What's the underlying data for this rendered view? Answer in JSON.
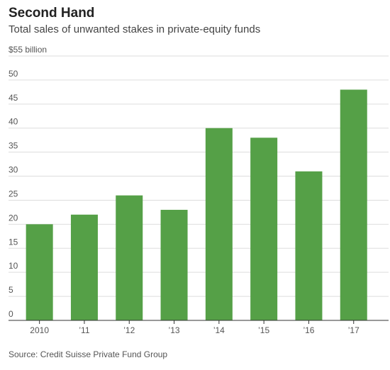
{
  "title": "Second Hand",
  "subtitle": "Total sales of unwanted stakes in private-equity funds",
  "source": "Source: Credit Suisse Private Fund Group",
  "chart_data": {
    "type": "bar",
    "categories": [
      "2010",
      "’11",
      "’12",
      "’13",
      "’14",
      "’15",
      "’16",
      "’17"
    ],
    "values": [
      20,
      22,
      26,
      23,
      40,
      38,
      31,
      48
    ],
    "y_ticks": [
      "0",
      "5",
      "10",
      "15",
      "20",
      "25",
      "30",
      "35",
      "40",
      "45",
      "50",
      "$55 billion"
    ],
    "ylim": [
      0,
      55
    ],
    "grid": true,
    "bar_color": "#55a047",
    "title": "Second Hand",
    "xlabel": "",
    "ylabel": ""
  }
}
